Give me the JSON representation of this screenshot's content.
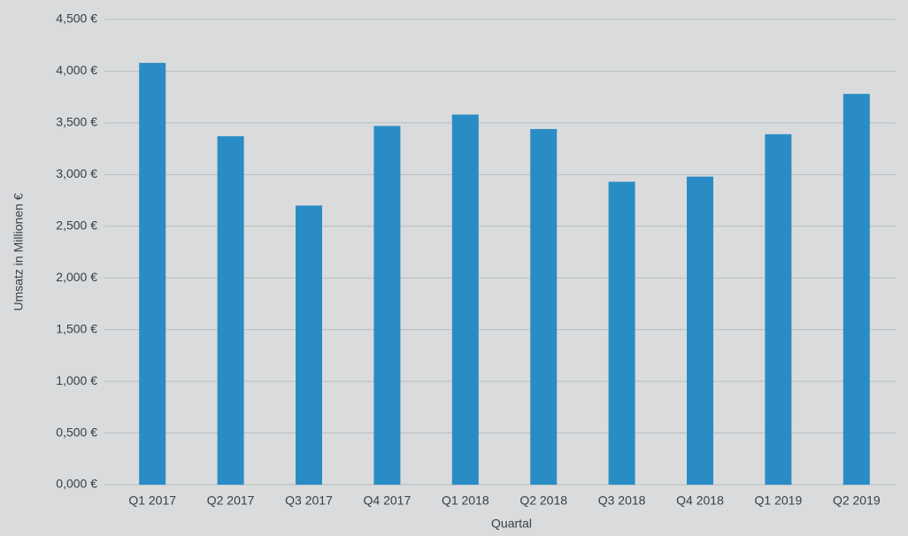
{
  "chart_data": {
    "type": "bar",
    "x_label": "Quartal",
    "y_label": "Umsatz in Millionen €",
    "categories": [
      "Q1 2017",
      "Q2 2017",
      "Q3 2017",
      "Q4 2017",
      "Q1 2018",
      "Q2 2018",
      "Q3 2018",
      "Q4 2018",
      "Q1 2019",
      "Q2 2019"
    ],
    "values": [
      4.08,
      3.37,
      2.7,
      3.47,
      3.58,
      3.44,
      2.93,
      2.98,
      3.39,
      3.78
    ],
    "color": "#2a8cc4",
    "ylim": [
      0,
      4.5
    ],
    "yticks": [
      {
        "value": 0,
        "label": "0,000 €"
      },
      {
        "value": 0.5,
        "label": "0,500 €"
      },
      {
        "value": 1,
        "label": "1,000 €"
      },
      {
        "value": 1.5,
        "label": "1,500 €"
      },
      {
        "value": 2,
        "label": "2,000 €"
      },
      {
        "value": 2.5,
        "label": "2,500 €"
      },
      {
        "value": 3,
        "label": "3,000 €"
      },
      {
        "value": 3.5,
        "label": "3,500 €"
      },
      {
        "value": 4,
        "label": "4,000 €"
      },
      {
        "value": 4.5,
        "label": "4,500 €"
      }
    ],
    "grid": true
  }
}
